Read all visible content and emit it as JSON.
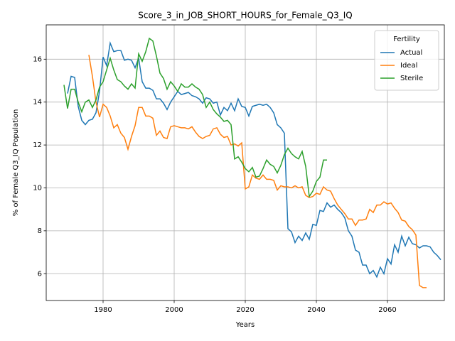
{
  "chart_data": {
    "type": "line",
    "title": "Score_3_in_JOB_SHORT_HOURS_for_Female_Q3_IQ",
    "xlabel": "Years",
    "ylabel": "% of Female Q3_IQ Population",
    "legend_title": "Fertility",
    "legend": "upper right",
    "grid": true,
    "xlim": [
      1964,
      2076
    ],
    "xticks": [
      1980,
      2000,
      2020,
      2040,
      2060
    ],
    "ylim": [
      4.75,
      17.6
    ],
    "yticks": [
      6,
      8,
      10,
      12,
      14,
      16
    ],
    "x": [
      1969,
      1970,
      1971,
      1972,
      1973,
      1974,
      1975,
      1976,
      1977,
      1978,
      1979,
      1980,
      1981,
      1982,
      1983,
      1984,
      1985,
      1986,
      1987,
      1988,
      1989,
      1990,
      1991,
      1992,
      1993,
      1994,
      1995,
      1996,
      1997,
      1998,
      1999,
      2000,
      2001,
      2002,
      2003,
      2004,
      2005,
      2006,
      2007,
      2008,
      2009,
      2010,
      2011,
      2012,
      2013,
      2014,
      2015,
      2016,
      2017,
      2018,
      2019,
      2020,
      2021,
      2022,
      2023,
      2024,
      2025,
      2026,
      2027,
      2028,
      2029,
      2030,
      2031,
      2032,
      2033,
      2034,
      2035,
      2036,
      2037,
      2038,
      2039,
      2040,
      2041,
      2042,
      2043,
      2044,
      2045,
      2046,
      2047,
      2048,
      2049,
      2050,
      2051,
      2052,
      2053,
      2054,
      2055,
      2056,
      2057,
      2058,
      2059,
      2060,
      2061,
      2062,
      2063,
      2064,
      2065,
      2066,
      2067,
      2068,
      2069,
      2070,
      2071,
      2072,
      2073,
      2074,
      2075
    ],
    "series": [
      {
        "name": "Actual",
        "color": "#1f77b4",
        "values": [
          null,
          14.4,
          15.2,
          15.15,
          13.8,
          13.15,
          12.95,
          13.15,
          13.2,
          13.5,
          14.5,
          16.1,
          15.7,
          16.75,
          16.35,
          16.4,
          16.4,
          15.95,
          16.0,
          15.95,
          15.6,
          16.05,
          14.95,
          14.65,
          14.65,
          14.55,
          14.15,
          14.15,
          13.95,
          13.65,
          14.0,
          14.25,
          14.5,
          14.35,
          14.4,
          14.45,
          14.3,
          14.25,
          14.15,
          13.95,
          14.2,
          14.15,
          13.95,
          14.0,
          13.4,
          13.75,
          13.6,
          13.95,
          13.6,
          14.15,
          13.8,
          13.75,
          13.35,
          13.8,
          13.85,
          13.9,
          13.85,
          13.9,
          13.75,
          13.5,
          12.95,
          12.8,
          12.55,
          8.1,
          7.95,
          7.45,
          7.75,
          7.55,
          7.9,
          7.6,
          8.3,
          8.25,
          8.95,
          8.9,
          9.3,
          9.1,
          9.2,
          9.0,
          8.85,
          8.6,
          8.0,
          7.75,
          7.1,
          7.0,
          6.4,
          6.4,
          6.0,
          6.15,
          5.85,
          6.3,
          6.0,
          6.7,
          6.45,
          7.35,
          7.0,
          7.75,
          7.3,
          7.7,
          7.4,
          7.35,
          7.2,
          7.3,
          7.3,
          7.25,
          7.0,
          6.85,
          6.65
        ]
      },
      {
        "name": "Ideal",
        "color": "#ff7f0e",
        "values": [
          null,
          null,
          null,
          null,
          null,
          null,
          null,
          16.2,
          15.2,
          14.0,
          13.3,
          13.9,
          13.75,
          13.35,
          12.8,
          12.95,
          12.55,
          12.35,
          11.8,
          12.4,
          12.9,
          13.75,
          13.75,
          13.35,
          13.35,
          13.25,
          12.45,
          12.65,
          12.35,
          12.3,
          12.85,
          12.9,
          12.85,
          12.8,
          12.8,
          12.75,
          12.85,
          12.6,
          12.4,
          12.3,
          12.4,
          12.45,
          12.75,
          12.8,
          12.5,
          12.35,
          12.4,
          12.0,
          12.05,
          11.95,
          12.1,
          9.95,
          10.05,
          10.6,
          10.45,
          10.4,
          10.6,
          10.4,
          10.4,
          10.35,
          9.9,
          10.1,
          10.05,
          10.05,
          10.0,
          10.1,
          10.0,
          10.05,
          9.65,
          9.55,
          9.6,
          9.75,
          9.7,
          10.05,
          9.9,
          9.85,
          9.5,
          9.2,
          9.0,
          8.8,
          8.55,
          8.55,
          8.25,
          8.5,
          8.5,
          8.55,
          9.0,
          8.85,
          9.2,
          9.2,
          9.35,
          9.25,
          9.3,
          9.05,
          8.85,
          8.5,
          8.45,
          8.2,
          8.05,
          7.8,
          5.45,
          5.35,
          5.35,
          null,
          null,
          null,
          null
        ]
      },
      {
        "name": "Sterile",
        "color": "#2ca02c",
        "values": [
          14.8,
          13.7,
          14.6,
          14.6,
          14.0,
          13.55,
          14.0,
          14.1,
          13.75,
          14.1,
          14.7,
          14.95,
          15.5,
          16.05,
          15.5,
          15.05,
          14.95,
          14.75,
          14.6,
          14.85,
          14.65,
          16.25,
          15.9,
          16.35,
          16.97,
          16.85,
          16.15,
          15.35,
          15.1,
          14.6,
          14.95,
          14.75,
          14.5,
          14.85,
          14.7,
          14.7,
          14.85,
          14.7,
          14.6,
          14.35,
          13.75,
          14.0,
          13.65,
          13.45,
          13.3,
          13.1,
          13.15,
          12.95,
          11.35,
          11.45,
          11.2,
          10.9,
          10.75,
          10.95,
          10.5,
          10.55,
          10.9,
          11.3,
          11.1,
          11.0,
          10.7,
          11.05,
          11.55,
          11.85,
          11.6,
          11.45,
          11.35,
          11.7,
          11.0,
          9.6,
          9.85,
          10.3,
          10.5,
          11.3,
          11.3,
          null,
          null,
          null,
          null,
          null,
          null,
          null,
          null,
          null,
          null,
          null,
          null,
          null,
          null,
          null,
          null,
          null,
          null,
          null,
          null,
          null,
          null,
          null,
          null,
          null,
          null,
          null,
          null,
          null,
          null,
          null,
          null
        ]
      }
    ]
  }
}
